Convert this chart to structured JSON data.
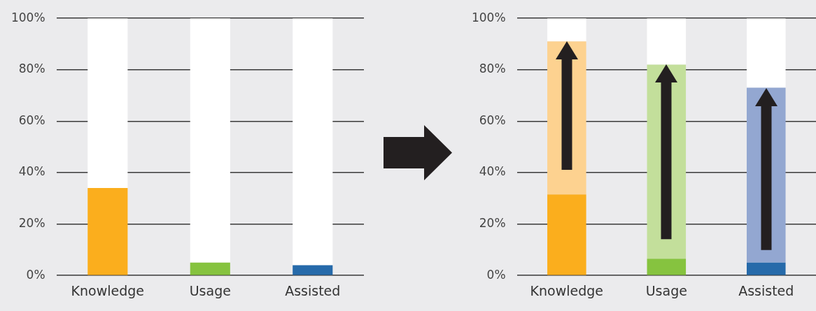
{
  "chart_data": [
    {
      "type": "bar",
      "stacked": true,
      "categories": [
        "Knowledge",
        "Usage",
        "Assisted"
      ],
      "series": [
        {
          "colors": [
            "#fbae1d",
            "#86c33f",
            "#266aaa"
          ],
          "values": [
            34,
            5,
            4
          ]
        },
        {
          "color": "#ffffff",
          "values": [
            66,
            95,
            96
          ]
        }
      ],
      "ylim": [
        0,
        100
      ],
      "yticks": [
        {
          "value": 0,
          "label": "0%"
        },
        {
          "value": 20,
          "label": "20%"
        },
        {
          "value": 40,
          "label": "40%"
        },
        {
          "value": 60,
          "label": "60%"
        },
        {
          "value": 80,
          "label": "80%"
        },
        {
          "value": 100,
          "label": "100%"
        }
      ],
      "grid": "y",
      "legend": false
    },
    {
      "type": "bar",
      "stacked": true,
      "categories": [
        "Knowledge",
        "Usage",
        "Assisted"
      ],
      "series": [
        {
          "colors": [
            "#fbae1d",
            "#86c33f",
            "#266aaa"
          ],
          "values": [
            31.5,
            6.5,
            5
          ]
        },
        {
          "colors": [
            "#fdd290",
            "#c3df9b",
            "#93a7d1"
          ],
          "values": [
            59.5,
            75.5,
            68
          ]
        },
        {
          "color": "#ffffff",
          "values": [
            9,
            18,
            27
          ]
        }
      ],
      "ylim": [
        0,
        100
      ],
      "yticks": [
        {
          "value": 0,
          "label": "0%"
        },
        {
          "value": 20,
          "label": "20%"
        },
        {
          "value": 40,
          "label": "40%"
        },
        {
          "value": 60,
          "label": "60%"
        },
        {
          "value": 80,
          "label": "80%"
        },
        {
          "value": 100,
          "label": "100%"
        }
      ],
      "grid": "y",
      "legend": false
    }
  ]
}
